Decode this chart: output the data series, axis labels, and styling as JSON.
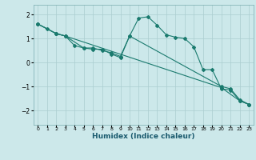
{
  "xlabel": "Humidex (Indice chaleur)",
  "bg_color": "#cce8ea",
  "grid_color": "#aacdd0",
  "line_color": "#1a7a6e",
  "xlim": [
    -0.5,
    23.5
  ],
  "ylim": [
    -2.6,
    2.4
  ],
  "yticks": [
    -2,
    -1,
    0,
    1,
    2
  ],
  "xticks": [
    0,
    1,
    2,
    3,
    4,
    5,
    6,
    7,
    8,
    9,
    10,
    11,
    12,
    13,
    14,
    15,
    16,
    17,
    18,
    19,
    20,
    21,
    22,
    23
  ],
  "series": [
    {
      "x": [
        0,
        1,
        2,
        3,
        4,
        5,
        6,
        7,
        8,
        9,
        10,
        11,
        12,
        13,
        14,
        15,
        16,
        17,
        18,
        19,
        20,
        21,
        22,
        23
      ],
      "y": [
        1.6,
        1.4,
        1.2,
        1.1,
        0.7,
        0.6,
        0.6,
        0.5,
        0.4,
        0.25,
        1.1,
        1.85,
        1.9,
        1.55,
        1.15,
        1.05,
        1.0,
        0.65,
        -0.3,
        -0.3,
        -1.1,
        -1.15,
        -1.6,
        -1.75
      ]
    },
    {
      "x": [
        0,
        2,
        3,
        5,
        6,
        7,
        8,
        9,
        10,
        20,
        21,
        22,
        23
      ],
      "y": [
        1.6,
        1.2,
        1.1,
        0.6,
        0.55,
        0.55,
        0.35,
        0.2,
        1.1,
        -1.0,
        -1.1,
        -1.55,
        -1.75
      ]
    },
    {
      "x": [
        0,
        2,
        3,
        20,
        22,
        23
      ],
      "y": [
        1.6,
        1.2,
        1.1,
        -1.05,
        -1.6,
        -1.75
      ]
    }
  ]
}
